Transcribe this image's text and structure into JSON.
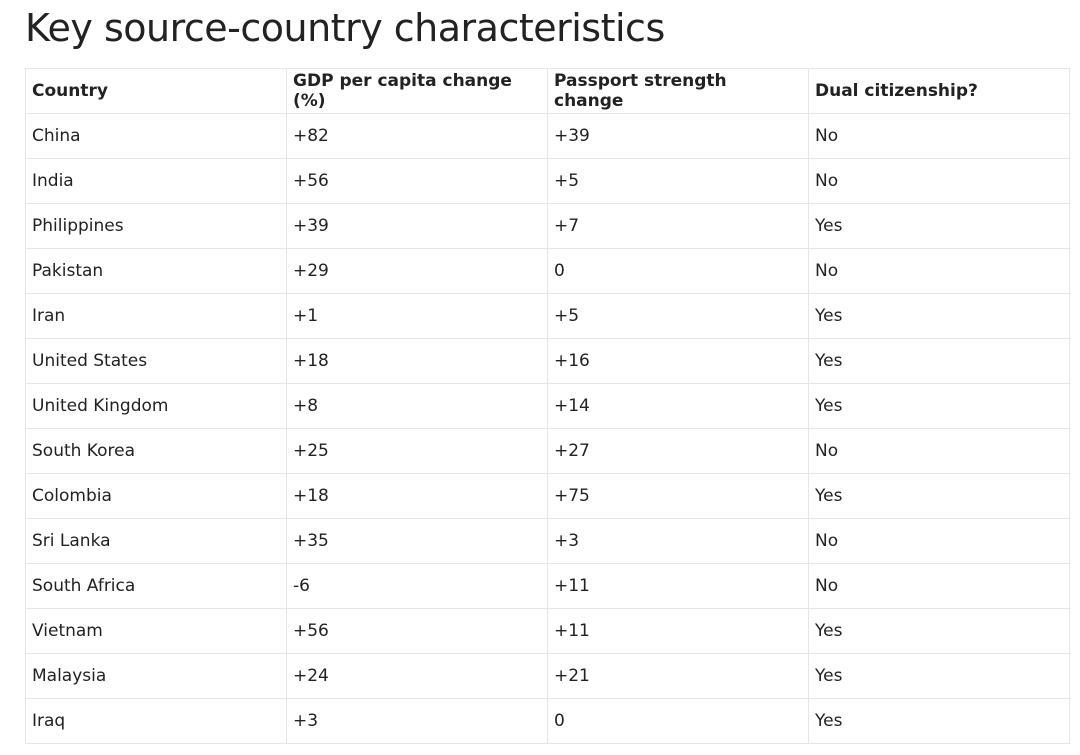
{
  "title": "Key source-country characteristics",
  "table": {
    "header": [
      "Country",
      "GDP per capita change (%)",
      "Passport strength change",
      "Dual citizenship?"
    ],
    "rows": [
      [
        "China",
        "+82",
        "+39",
        "No"
      ],
      [
        "India",
        "+56",
        "+5",
        "No"
      ],
      [
        "Philippines",
        "+39",
        "+7",
        "Yes"
      ],
      [
        "Pakistan",
        "+29",
        "0",
        "No"
      ],
      [
        "Iran",
        "+1",
        "+5",
        "Yes"
      ],
      [
        "United States",
        "+18",
        "+16",
        "Yes"
      ],
      [
        "United Kingdom",
        "+8",
        "+14",
        "Yes"
      ],
      [
        "South Korea",
        "+25",
        "+27",
        "No"
      ],
      [
        "Colombia",
        "+18",
        "+75",
        "Yes"
      ],
      [
        "Sri Lanka",
        "+35",
        "+3",
        "No"
      ],
      [
        "South Africa",
        "-6",
        "+11",
        "No"
      ],
      [
        "Vietnam",
        "+56",
        "+11",
        "Yes"
      ],
      [
        "Malaysia",
        "+24",
        "+21",
        "Yes"
      ],
      [
        "Iraq",
        "+3",
        "0",
        "Yes"
      ]
    ]
  }
}
